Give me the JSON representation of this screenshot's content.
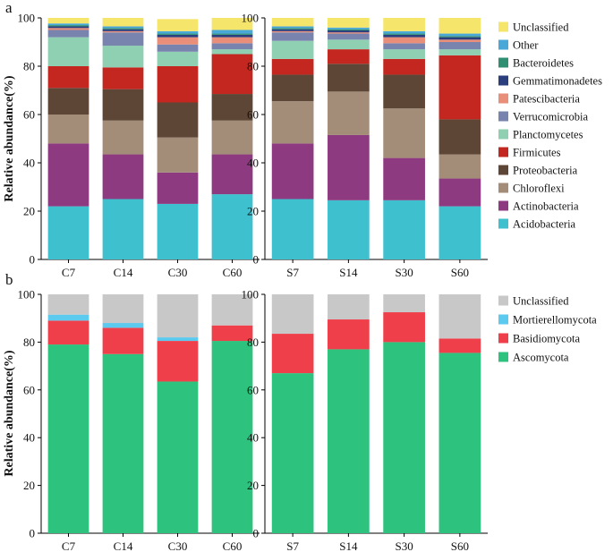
{
  "panels": [
    {
      "label": "a",
      "ylabel": "Relative abundance(%)",
      "legend_title": "",
      "chart_data": {
        "type": "bar",
        "stacked": true,
        "ylim": [
          0,
          100
        ],
        "yticks": [
          0,
          20,
          40,
          60,
          80,
          100
        ],
        "groups": [
          {
            "categories": [
              "C7",
              "C14",
              "C30",
              "C60"
            ]
          },
          {
            "categories": [
              "S7",
              "S14",
              "S30",
              "S60"
            ]
          }
        ],
        "series": [
          {
            "name": "Acidobacteria",
            "color": "#3fc0ce",
            "values": [
              22,
              25,
              23,
              27,
              25,
              24.5,
              24.5,
              22
            ]
          },
          {
            "name": "Actinobacteria",
            "color": "#8e3a80",
            "values": [
              26,
              18.5,
              13,
              16.5,
              23,
              27,
              17.5,
              11.5
            ]
          },
          {
            "name": "Chloroflexi",
            "color": "#a38d79",
            "values": [
              12,
              14,
              14.5,
              14,
              17.5,
              18,
              20.5,
              10
            ]
          },
          {
            "name": "Proteobacteria",
            "color": "#5e4636",
            "values": [
              11,
              13,
              14.5,
              11,
              11,
              11.5,
              14,
              14.5
            ]
          },
          {
            "name": "Firmicutes",
            "color": "#c3271f",
            "values": [
              9,
              9,
              15,
              16.5,
              6.5,
              6,
              6.5,
              26.5
            ]
          },
          {
            "name": "Planctomycetes",
            "color": "#8fcfb2",
            "values": [
              12,
              9,
              6,
              2,
              7.5,
              4,
              4,
              2.5
            ]
          },
          {
            "name": "Verrucomicrobia",
            "color": "#7884ae",
            "values": [
              3,
              5.5,
              3,
              2.5,
              3.5,
              2.5,
              2.5,
              3
            ]
          },
          {
            "name": "Patescibacteria",
            "color": "#e98e78",
            "values": [
              0.8,
              0.5,
              3,
              2.5,
              0.5,
              0.5,
              2.5,
              1
            ]
          },
          {
            "name": "Gemmatimonadetes",
            "color": "#2b3e7e",
            "values": [
              0.7,
              0.8,
              1,
              1,
              0.8,
              0.8,
              1,
              1
            ]
          },
          {
            "name": "Bacteroidetes",
            "color": "#2f8f73",
            "values": [
              0.5,
              0.5,
              0.5,
              0.5,
              0.5,
              0.5,
              0.5,
              0.5
            ]
          },
          {
            "name": "Other",
            "color": "#4aa8d8",
            "values": [
              0.7,
              0.7,
              1,
              1.5,
              0.7,
              0.7,
              1,
              1
            ]
          },
          {
            "name": "Unclassified",
            "color": "#f5e56a",
            "values": [
              2.3,
              3.5,
              5,
              5,
              3.5,
              4,
              5.5,
              6.5
            ]
          }
        ]
      }
    },
    {
      "label": "b",
      "ylabel": "Relative abundance(%)",
      "legend_title": "",
      "chart_data": {
        "type": "bar",
        "stacked": true,
        "ylim": [
          0,
          100
        ],
        "yticks": [
          0,
          20,
          40,
          60,
          80,
          100
        ],
        "groups": [
          {
            "categories": [
              "C7",
              "C14",
              "C30",
              "C60"
            ]
          },
          {
            "categories": [
              "S7",
              "S14",
              "S30",
              "S60"
            ]
          }
        ],
        "series": [
          {
            "name": "Ascomycota",
            "color": "#2dc27d",
            "values": [
              79,
              75,
              63.5,
              80.5,
              67,
              77,
              80,
              75.5
            ]
          },
          {
            "name": "Basidiomycota",
            "color": "#ef3f4a",
            "values": [
              10,
              11,
              17,
              6.5,
              16.5,
              12.5,
              12.5,
              6
            ]
          },
          {
            "name": "Mortierellomycota",
            "color": "#5cc9ef",
            "values": [
              2.5,
              2,
              1.5,
              0,
              0,
              0,
              0,
              0
            ]
          },
          {
            "name": "Unclassified",
            "color": "#c8c8c8",
            "values": [
              8.5,
              12,
              18,
              13,
              16.5,
              10.5,
              7.5,
              18.5
            ]
          }
        ]
      }
    }
  ]
}
